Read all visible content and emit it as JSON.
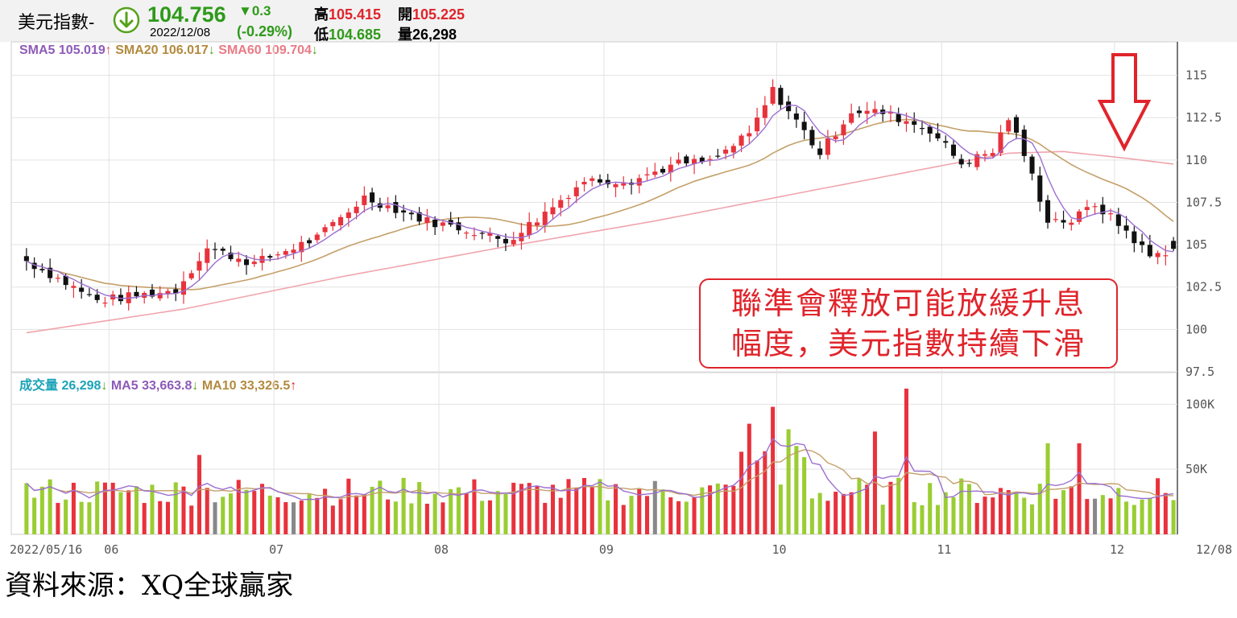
{
  "header": {
    "symbol": "美元指數-",
    "price": "104.756",
    "date": "2022/12/08",
    "change": "▼0.3",
    "change_pct": "(-0.29%)",
    "high_label": "高",
    "high": "105.415",
    "open_label": "開",
    "open": "105.225",
    "low_label": "低",
    "low": "104.685",
    "vol_label": "量",
    "vol": "26,298",
    "icon": "down-arrow-circle-icon"
  },
  "price_legend": [
    {
      "label": "SMA5 105.019",
      "arrow": "↑",
      "color": "#8e5bb8",
      "arrow_color": "#e0242b"
    },
    {
      "label": "SMA20 106.017",
      "arrow": "↓",
      "color": "#b38a3e",
      "arrow_color": "#55a21b"
    },
    {
      "label": "SMA60 109.704",
      "arrow": "↓",
      "color": "#ea7a85",
      "arrow_color": "#55a21b"
    }
  ],
  "volume_legend": [
    {
      "label": "成交量 26,298",
      "arrow": "↓",
      "color": "#1aa3b8",
      "arrow_color": "#55a21b"
    },
    {
      "label": "MA5 33,663.8",
      "arrow": "↓",
      "color": "#8e5bb8",
      "arrow_color": "#55a21b"
    },
    {
      "label": "MA10 33,326.5",
      "arrow": "↑",
      "color": "#b38a3e",
      "arrow_color": "#e0242b"
    }
  ],
  "annotation": {
    "line1": "聯準會釋放可能放緩升息",
    "line2": "幅度，美元指數持續下滑"
  },
  "source": "資料來源：XQ全球贏家",
  "colors": {
    "up": "#e8323c",
    "down": "#111111",
    "vol_up": "#e8323c",
    "vol_down": "#9acd32",
    "vol_flat": "#888888",
    "sma5": "#9b6fd0",
    "sma20": "#c4a06a",
    "sma60": "#f0a4ae",
    "grid": "#e3e3e3"
  },
  "chart_data": [
    {
      "type": "candlestick",
      "title": "美元指數",
      "ylim": [
        97.5,
        116.5
      ],
      "yticks": [
        97.5,
        100,
        102.5,
        105,
        107.5,
        110,
        112.5,
        115
      ],
      "ytick_labels": [
        "97.5",
        "100",
        "102.5",
        "105",
        "107.5",
        "110",
        "112.5",
        "115"
      ],
      "xtick_labels": [
        "2022/05/16",
        "06",
        "07",
        "08",
        "09",
        "10",
        "11",
        "12",
        "12/08"
      ],
      "xtick_index": [
        0,
        11,
        32,
        53,
        74,
        96,
        117,
        139,
        147
      ],
      "bars": 147,
      "key_points": [
        {
          "i": 0,
          "v": 104.3
        },
        {
          "i": 10,
          "v": 101.7
        },
        {
          "i": 20,
          "v": 102.3
        },
        {
          "i": 24,
          "v": 104.8
        },
        {
          "i": 30,
          "v": 103.9
        },
        {
          "i": 38,
          "v": 105.4
        },
        {
          "i": 44,
          "v": 107.8
        },
        {
          "i": 52,
          "v": 106.4
        },
        {
          "i": 58,
          "v": 105.8
        },
        {
          "i": 62,
          "v": 105.2
        },
        {
          "i": 66,
          "v": 106.5
        },
        {
          "i": 72,
          "v": 108.8
        },
        {
          "i": 78,
          "v": 108.8
        },
        {
          "i": 84,
          "v": 109.8
        },
        {
          "i": 88,
          "v": 109.9
        },
        {
          "i": 93,
          "v": 111.5
        },
        {
          "i": 96,
          "v": 114.1
        },
        {
          "i": 99,
          "v": 112.3
        },
        {
          "i": 102,
          "v": 110.4
        },
        {
          "i": 106,
          "v": 112.9
        },
        {
          "i": 110,
          "v": 112.8
        },
        {
          "i": 116,
          "v": 111.8
        },
        {
          "i": 120,
          "v": 109.8
        },
        {
          "i": 124,
          "v": 110.5
        },
        {
          "i": 126,
          "v": 112.5
        },
        {
          "i": 128,
          "v": 110.3
        },
        {
          "i": 131,
          "v": 106.5
        },
        {
          "i": 134,
          "v": 106.4
        },
        {
          "i": 137,
          "v": 107.4
        },
        {
          "i": 141,
          "v": 105.8
        },
        {
          "i": 144,
          "v": 104.3
        },
        {
          "i": 147,
          "v": 104.756
        }
      ],
      "sma60_points": [
        {
          "i": 0,
          "v": 99.8
        },
        {
          "i": 20,
          "v": 101.2
        },
        {
          "i": 40,
          "v": 103.1
        },
        {
          "i": 60,
          "v": 104.8
        },
        {
          "i": 80,
          "v": 106.4
        },
        {
          "i": 100,
          "v": 108.2
        },
        {
          "i": 118,
          "v": 109.8
        },
        {
          "i": 125,
          "v": 110.4
        },
        {
          "i": 132,
          "v": 110.5
        },
        {
          "i": 140,
          "v": 110.1
        },
        {
          "i": 147,
          "v": 109.704
        }
      ],
      "series": [
        {
          "name": "SMA5",
          "value": 105.019
        },
        {
          "name": "SMA20",
          "value": 106.017
        },
        {
          "name": "SMA60",
          "value": 109.704
        }
      ]
    },
    {
      "type": "bar",
      "title": "成交量",
      "ylim": [
        0,
        120000
      ],
      "yticks": [
        50000,
        100000
      ],
      "ytick_labels": [
        "50K",
        "100K"
      ],
      "last_value": 26298,
      "series": [
        {
          "name": "MA5",
          "value": 33663.8
        },
        {
          "name": "MA10",
          "value": 33326.5
        }
      ]
    }
  ]
}
